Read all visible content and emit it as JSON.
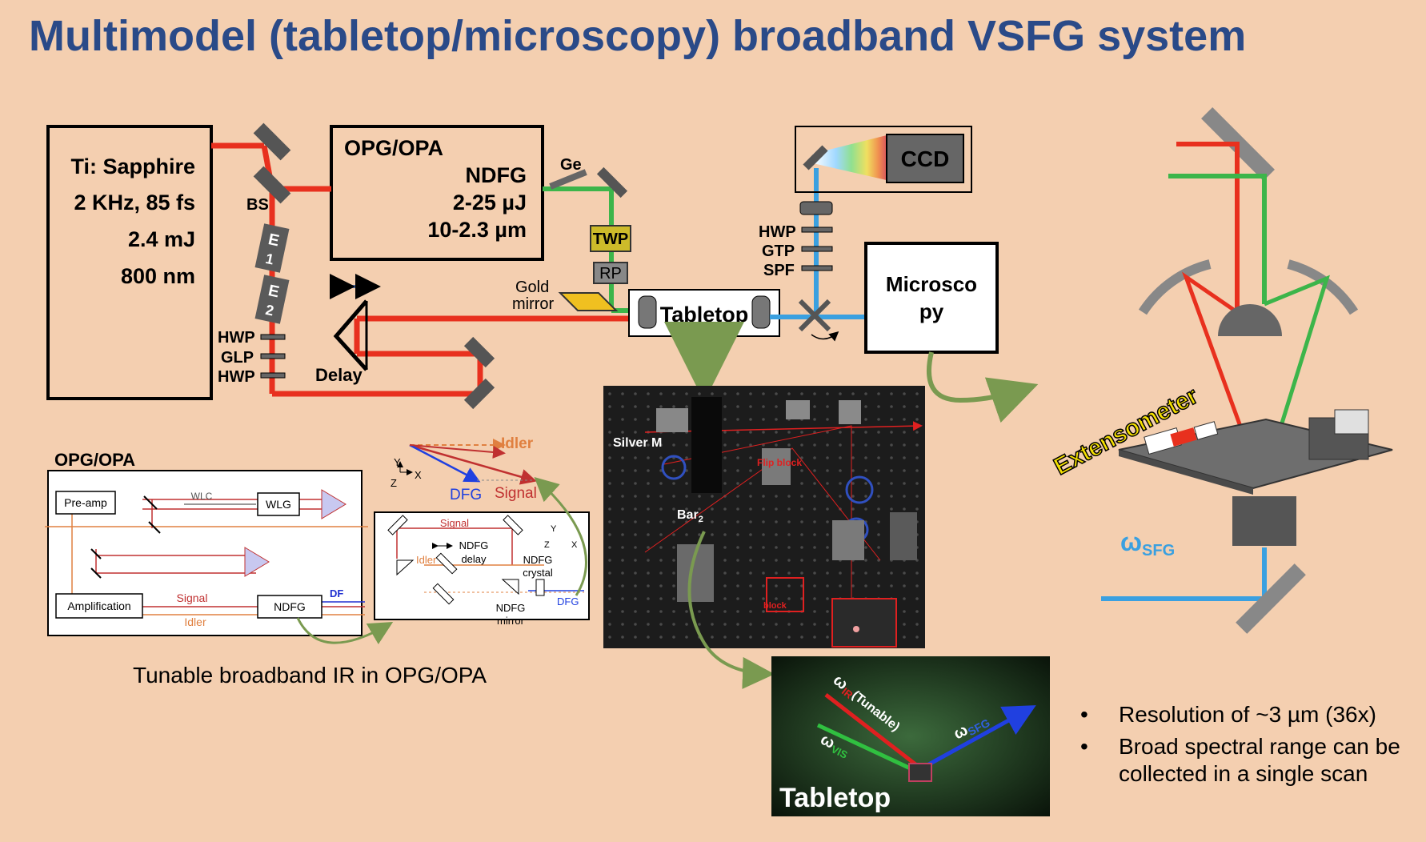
{
  "title": "Multimodel (tabletop/microscopy) broadband VSFG system",
  "laser": {
    "name": "Ti: Sapphire",
    "rate": "2 KHz, 85 fs",
    "energy": "2.4 mJ",
    "wavelength": "800 nm"
  },
  "opa": {
    "name": "OPG/OPA",
    "stage": "NDFG",
    "energy": "2-25 µJ",
    "range": "10-2.3 µm"
  },
  "labels": {
    "bs": "BS",
    "e1": "E",
    "e1n": "1",
    "e2": "E",
    "e2n": "2",
    "hwp1": "HWP",
    "glp": "GLP",
    "hwp2": "HWP",
    "delay": "Delay",
    "ge": "Ge",
    "twp": "TWP",
    "rp": "RP",
    "gold1": "Gold",
    "gold2": "mirror",
    "tabletop": "Tabletop",
    "ccd": "CCD",
    "hwp3": "HWP",
    "gtp": "GTP",
    "spf": "SPF",
    "micro1": "Microsco",
    "micro2": "py"
  },
  "inset": {
    "title": "OPG/OPA",
    "preamp": "Pre-amp",
    "wlc": "WLC",
    "wlg": "WLG",
    "amplification": "Amplification",
    "signal": "Signal",
    "idler": "Idler",
    "ndfg": "NDFG",
    "df": "DF"
  },
  "ndfg_inset": {
    "signal": "Signal",
    "idler": "Idler",
    "ndfg_delay1": "NDFG",
    "ndfg_delay2": "delay",
    "ndfg_crystal1": "NDFG",
    "ndfg_crystal2": "crystal",
    "ndfg_mirror1": "NDFG",
    "ndfg_mirror2": "mirror",
    "dfg": "DFG",
    "y": "Y",
    "z": "Z",
    "x": "X"
  },
  "vector": {
    "idler": "Idler",
    "dfg": "DFG",
    "signal": "Signal",
    "y": "Y",
    "z": "Z",
    "x": "X"
  },
  "photo1": {
    "silver": "Silver M",
    "bar": "Bar",
    "bar_sub": "2",
    "flip": "Flip block",
    "block": "block"
  },
  "photo2": {
    "omega": "ω",
    "ir": "IR",
    "tunable": "(Tunable)",
    "vis": "VIS",
    "sfg": "SFG",
    "label": "Tabletop"
  },
  "right": {
    "extensometer": "Extensometer",
    "omega": "ω",
    "sfg": "SFG"
  },
  "caption": "Tunable broadband IR in OPG/OPA",
  "bullets": [
    "Resolution of ~3 µm (36x)",
    "Broad spectral range can be collected in a single scan"
  ],
  "colors": {
    "title": "#2a4a88",
    "beam_red": "#e8301e",
    "beam_green": "#3cb54a",
    "beam_blue": "#3aa0e0",
    "background": "#f4cfb0"
  }
}
